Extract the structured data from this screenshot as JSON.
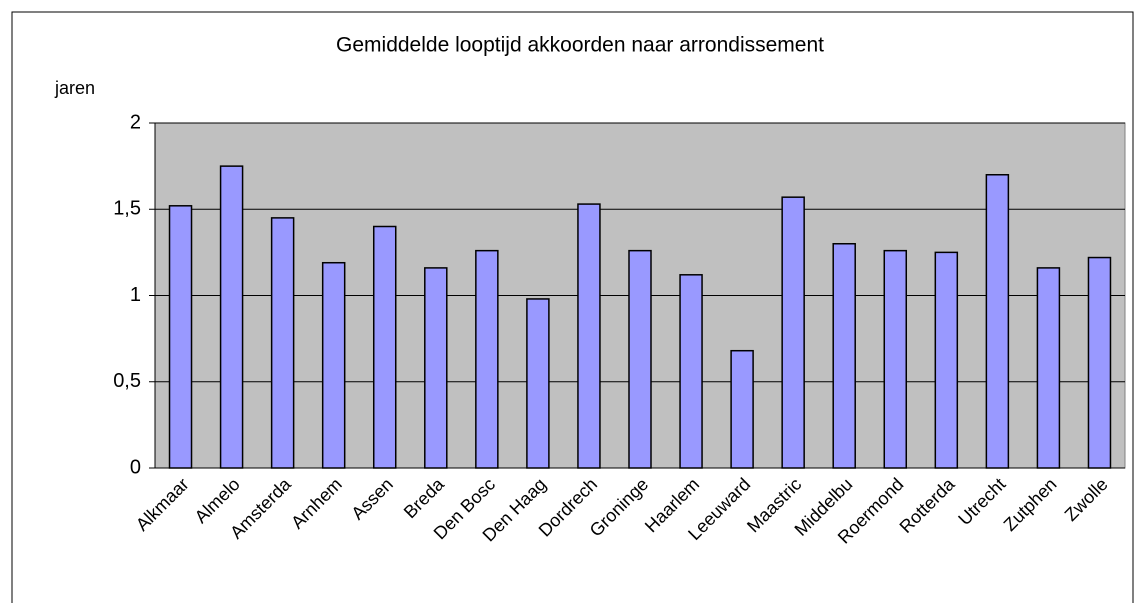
{
  "chart_data": {
    "type": "bar",
    "title": "Gemiddelde looptijd akkoorden naar arrondissement",
    "y_label": "jaren",
    "categories": [
      "Alkmaar",
      "Almelo",
      "Amsterda",
      "Arnhem",
      "Assen",
      "Breda",
      "Den Bosc",
      "Den Haag",
      "Dordrech",
      "Groninge",
      "Haarlem",
      "Leeuward",
      "Maastric",
      "Middelbu",
      "Roermond",
      "Rotterda",
      "Utrecht",
      "Zutphen",
      "Zwolle"
    ],
    "values": [
      1.52,
      1.75,
      1.45,
      1.19,
      1.4,
      1.16,
      1.26,
      0.98,
      1.53,
      1.26,
      1.12,
      0.68,
      1.57,
      1.3,
      1.26,
      1.25,
      1.7,
      1.16,
      1.22
    ],
    "color": "#9999ff",
    "plot_background": "#c0c0c0",
    "ylim": [
      0,
      2
    ],
    "yticks": [
      0,
      {
        "value": 0.5,
        "label": "0,5"
      },
      1,
      {
        "value": 1.5,
        "label": "1,5"
      },
      2
    ],
    "grid": true
  }
}
